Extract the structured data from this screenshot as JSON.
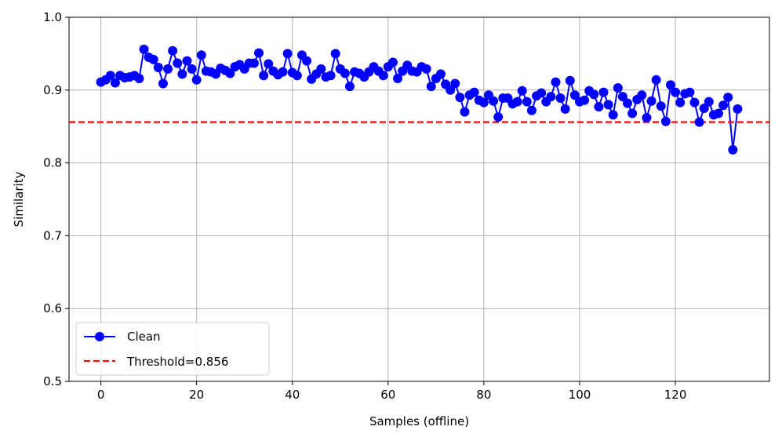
{
  "chart_data": {
    "type": "line",
    "xlabel": "Samples (offline)",
    "ylabel": "Similarity",
    "xlim": [
      -6.65,
      139.65
    ],
    "ylim": [
      0.5,
      1.0
    ],
    "xticks": [
      0,
      20,
      40,
      60,
      80,
      100,
      120
    ],
    "yticks": [
      0.5,
      0.6,
      0.7,
      0.8,
      0.9,
      1.0
    ],
    "xtick_labels": [
      "0",
      "20",
      "40",
      "60",
      "80",
      "100",
      "120"
    ],
    "ytick_labels": [
      "0.5",
      "0.6",
      "0.7",
      "0.8",
      "0.9",
      "1.0"
    ],
    "grid": true,
    "legend_position": "lower-left",
    "series": [
      {
        "name": "Clean",
        "color": "#0000ff",
        "marker": "circle",
        "values": [
          0.911,
          0.914,
          0.92,
          0.91,
          0.92,
          0.917,
          0.918,
          0.92,
          0.916,
          0.956,
          0.945,
          0.942,
          0.931,
          0.909,
          0.929,
          0.954,
          0.937,
          0.922,
          0.94,
          0.929,
          0.914,
          0.948,
          0.926,
          0.925,
          0.922,
          0.93,
          0.927,
          0.923,
          0.932,
          0.935,
          0.929,
          0.937,
          0.937,
          0.951,
          0.92,
          0.936,
          0.926,
          0.921,
          0.925,
          0.95,
          0.924,
          0.92,
          0.948,
          0.94,
          0.915,
          0.922,
          0.929,
          0.918,
          0.92,
          0.95,
          0.929,
          0.923,
          0.905,
          0.925,
          0.923,
          0.918,
          0.925,
          0.932,
          0.926,
          0.92,
          0.932,
          0.938,
          0.916,
          0.926,
          0.934,
          0.926,
          0.925,
          0.932,
          0.929,
          0.905,
          0.916,
          0.922,
          0.908,
          0.9,
          0.909,
          0.89,
          0.87,
          0.893,
          0.897,
          0.886,
          0.883,
          0.893,
          0.885,
          0.863,
          0.889,
          0.889,
          0.881,
          0.884,
          0.899,
          0.884,
          0.872,
          0.892,
          0.896,
          0.884,
          0.891,
          0.911,
          0.889,
          0.874,
          0.913,
          0.893,
          0.884,
          0.886,
          0.899,
          0.894,
          0.877,
          0.897,
          0.88,
          0.866,
          0.903,
          0.891,
          0.882,
          0.868,
          0.887,
          0.893,
          0.862,
          0.885,
          0.914,
          0.878,
          0.857,
          0.907,
          0.897,
          0.883,
          0.895,
          0.897,
          0.883,
          0.856,
          0.875,
          0.884,
          0.866,
          0.868,
          0.879,
          0.89,
          0.818,
          0.874
        ]
      },
      {
        "name": "Threshold=0.856",
        "color": "#ff0000",
        "style": "dashed",
        "value": 0.856
      }
    ]
  }
}
